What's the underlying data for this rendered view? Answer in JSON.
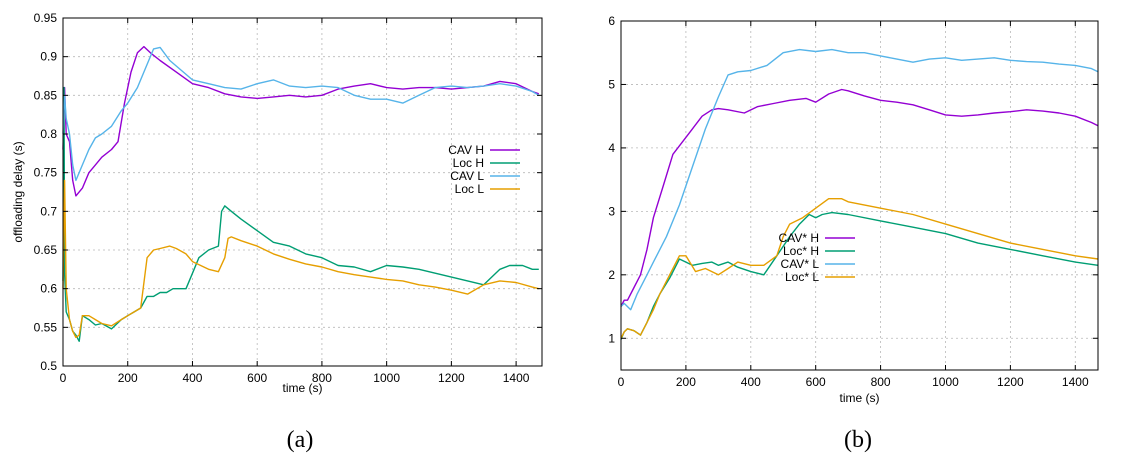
{
  "charts": [
    {
      "caption": "(a)",
      "chart_data": {
        "type": "line",
        "xlabel": "time (s)",
        "ylabel": "offloading delay (s)",
        "xlim": [
          0,
          1480
        ],
        "ylim": [
          0.5,
          0.95
        ],
        "xticks": [
          0,
          200,
          400,
          600,
          800,
          1000,
          1200,
          1400
        ],
        "yticks": [
          0.5,
          0.55,
          0.6,
          0.65,
          0.7,
          0.75,
          0.8,
          0.85,
          0.9,
          0.95
        ],
        "ytick_labels": [
          "0.5",
          "0.55",
          "0.6",
          "0.65",
          "0.7",
          "0.75",
          "0.8",
          "0.85",
          "0.9",
          "0.95"
        ],
        "grid": true,
        "legend_position": "right",
        "series": [
          {
            "name": "CAV H",
            "color": "#9400d3",
            "x": [
              0,
              5,
              10,
              20,
              30,
              40,
              60,
              80,
              100,
              120,
              150,
              170,
              190,
              210,
              230,
              250,
              270,
              300,
              350,
              400,
              450,
              500,
              550,
              600,
              650,
              700,
              750,
              800,
              850,
              900,
              950,
              1000,
              1050,
              1100,
              1150,
              1200,
              1250,
              1300,
              1350,
              1400,
              1450,
              1470
            ],
            "y": [
              0.78,
              0.86,
              0.8,
              0.79,
              0.74,
              0.72,
              0.73,
              0.75,
              0.76,
              0.77,
              0.78,
              0.79,
              0.84,
              0.88,
              0.905,
              0.913,
              0.905,
              0.895,
              0.88,
              0.865,
              0.86,
              0.852,
              0.848,
              0.846,
              0.848,
              0.85,
              0.848,
              0.85,
              0.858,
              0.862,
              0.865,
              0.86,
              0.858,
              0.86,
              0.86,
              0.858,
              0.86,
              0.862,
              0.868,
              0.865,
              0.855,
              0.852
            ]
          },
          {
            "name": "Loc H",
            "color": "#009e73",
            "x": [
              0,
              3,
              5,
              10,
              20,
              30,
              40,
              50,
              60,
              80,
              100,
              120,
              150,
              180,
              200,
              220,
              240,
              260,
              280,
              300,
              320,
              340,
              360,
              380,
              400,
              420,
              450,
              480,
              490,
              500,
              520,
              550,
              600,
              650,
              700,
              750,
              800,
              850,
              900,
              950,
              1000,
              1050,
              1100,
              1150,
              1200,
              1250,
              1300,
              1350,
              1380,
              1420,
              1450,
              1470
            ],
            "y": [
              0.61,
              0.86,
              0.62,
              0.57,
              0.56,
              0.545,
              0.54,
              0.532,
              0.565,
              0.56,
              0.553,
              0.555,
              0.548,
              0.56,
              0.565,
              0.57,
              0.575,
              0.59,
              0.59,
              0.595,
              0.595,
              0.6,
              0.6,
              0.6,
              0.62,
              0.64,
              0.65,
              0.655,
              0.7,
              0.707,
              0.7,
              0.69,
              0.675,
              0.66,
              0.655,
              0.645,
              0.64,
              0.63,
              0.628,
              0.622,
              0.63,
              0.628,
              0.625,
              0.62,
              0.615,
              0.61,
              0.605,
              0.625,
              0.63,
              0.63,
              0.625,
              0.625
            ]
          },
          {
            "name": "CAV L",
            "color": "#56b4e9",
            "x": [
              0,
              5,
              10,
              20,
              30,
              40,
              60,
              80,
              100,
              120,
              150,
              180,
              200,
              230,
              260,
              280,
              300,
              330,
              400,
              450,
              500,
              550,
              600,
              650,
              700,
              750,
              800,
              850,
              900,
              950,
              1000,
              1050,
              1100,
              1150,
              1200,
              1250,
              1300,
              1350,
              1400,
              1450,
              1470
            ],
            "y": [
              0.8,
              0.85,
              0.82,
              0.8,
              0.76,
              0.74,
              0.76,
              0.78,
              0.795,
              0.8,
              0.81,
              0.83,
              0.84,
              0.86,
              0.89,
              0.91,
              0.912,
              0.895,
              0.87,
              0.865,
              0.86,
              0.858,
              0.865,
              0.87,
              0.862,
              0.86,
              0.862,
              0.86,
              0.85,
              0.845,
              0.845,
              0.84,
              0.85,
              0.86,
              0.862,
              0.86,
              0.862,
              0.865,
              0.862,
              0.855,
              0.85
            ]
          },
          {
            "name": "Loc L",
            "color": "#e69f00",
            "x": [
              0,
              5,
              10,
              20,
              30,
              40,
              50,
              60,
              80,
              100,
              120,
              150,
              180,
              200,
              220,
              240,
              260,
              280,
              300,
              330,
              350,
              380,
              400,
              450,
              480,
              500,
              510,
              520,
              550,
              600,
              650,
              700,
              750,
              800,
              850,
              900,
              950,
              1000,
              1050,
              1100,
              1150,
              1200,
              1250,
              1300,
              1350,
              1400,
              1450,
              1470
            ],
            "y": [
              0.6,
              0.74,
              0.6,
              0.56,
              0.545,
              0.537,
              0.54,
              0.565,
              0.565,
              0.56,
              0.555,
              0.552,
              0.56,
              0.565,
              0.57,
              0.575,
              0.64,
              0.65,
              0.652,
              0.655,
              0.652,
              0.645,
              0.635,
              0.625,
              0.622,
              0.64,
              0.665,
              0.667,
              0.662,
              0.655,
              0.645,
              0.638,
              0.632,
              0.628,
              0.622,
              0.618,
              0.615,
              0.612,
              0.61,
              0.605,
              0.602,
              0.598,
              0.593,
              0.605,
              0.61,
              0.608,
              0.602,
              0.6
            ]
          }
        ]
      }
    },
    {
      "caption": "(b)",
      "chart_data": {
        "type": "line",
        "xlabel": "time (s)",
        "ylabel": "",
        "xlim": [
          0,
          1470
        ],
        "ylim": [
          0.5,
          6
        ],
        "xticks": [
          0,
          200,
          400,
          600,
          800,
          1000,
          1200,
          1400
        ],
        "yticks": [
          1,
          2,
          3,
          4,
          5,
          6
        ],
        "ytick_labels": [
          "1",
          "2",
          "3",
          "4",
          "5",
          "6"
        ],
        "grid": true,
        "legend_position": "center",
        "series": [
          {
            "name": "CAV* H",
            "color": "#9400d3",
            "x": [
              0,
              10,
              20,
              40,
              60,
              80,
              100,
              130,
              160,
              190,
              220,
              250,
              280,
              300,
              330,
              380,
              420,
              470,
              520,
              570,
              600,
              640,
              680,
              700,
              750,
              800,
              850,
              900,
              950,
              1000,
              1050,
              1100,
              1150,
              1200,
              1250,
              1300,
              1350,
              1400,
              1450,
              1470
            ],
            "y": [
              1.5,
              1.6,
              1.6,
              1.8,
              2.0,
              2.4,
              2.9,
              3.4,
              3.9,
              4.1,
              4.3,
              4.5,
              4.6,
              4.62,
              4.6,
              4.55,
              4.65,
              4.7,
              4.75,
              4.78,
              4.72,
              4.85,
              4.92,
              4.9,
              4.82,
              4.75,
              4.72,
              4.68,
              4.6,
              4.52,
              4.5,
              4.52,
              4.55,
              4.57,
              4.6,
              4.58,
              4.55,
              4.5,
              4.4,
              4.35
            ]
          },
          {
            "name": "Loc* H",
            "color": "#009e73",
            "x": [
              0,
              10,
              20,
              40,
              60,
              80,
              100,
              120,
              150,
              180,
              200,
              220,
              250,
              280,
              300,
              330,
              360,
              400,
              440,
              480,
              520,
              550,
              580,
              600,
              620,
              650,
              700,
              800,
              900,
              1000,
              1100,
              1200,
              1300,
              1400,
              1470
            ],
            "y": [
              0.98,
              1.1,
              1.15,
              1.12,
              1.05,
              1.25,
              1.5,
              1.7,
              1.95,
              2.25,
              2.2,
              2.15,
              2.18,
              2.2,
              2.15,
              2.2,
              2.12,
              2.05,
              2.0,
              2.3,
              2.6,
              2.8,
              2.95,
              2.9,
              2.95,
              2.98,
              2.95,
              2.85,
              2.75,
              2.65,
              2.5,
              2.4,
              2.3,
              2.2,
              2.15
            ]
          },
          {
            "name": "CAV* L",
            "color": "#56b4e9",
            "x": [
              0,
              10,
              30,
              50,
              80,
              100,
              140,
              180,
              220,
              260,
              300,
              330,
              360,
              400,
              450,
              500,
              550,
              600,
              650,
              700,
              750,
              800,
              850,
              900,
              950,
              1000,
              1050,
              1100,
              1150,
              1200,
              1250,
              1300,
              1350,
              1400,
              1450,
              1470
            ],
            "y": [
              1.5,
              1.55,
              1.45,
              1.7,
              2.0,
              2.2,
              2.6,
              3.1,
              3.7,
              4.3,
              4.8,
              5.15,
              5.2,
              5.22,
              5.3,
              5.5,
              5.55,
              5.52,
              5.55,
              5.5,
              5.5,
              5.45,
              5.4,
              5.35,
              5.4,
              5.42,
              5.38,
              5.4,
              5.42,
              5.38,
              5.36,
              5.35,
              5.32,
              5.3,
              5.25,
              5.2
            ]
          },
          {
            "name": "Loc* L",
            "color": "#e69f00",
            "x": [
              0,
              10,
              20,
              40,
              60,
              80,
              100,
              120,
              150,
              180,
              200,
              230,
              260,
              300,
              330,
              360,
              400,
              440,
              480,
              500,
              520,
              560,
              600,
              640,
              680,
              700,
              800,
              900,
              1000,
              1100,
              1200,
              1300,
              1400,
              1470
            ],
            "y": [
              1.0,
              1.1,
              1.15,
              1.12,
              1.05,
              1.25,
              1.45,
              1.7,
              2.0,
              2.3,
              2.3,
              2.05,
              2.1,
              2.0,
              2.1,
              2.2,
              2.15,
              2.15,
              2.3,
              2.6,
              2.8,
              2.9,
              3.05,
              3.2,
              3.2,
              3.15,
              3.05,
              2.95,
              2.8,
              2.65,
              2.5,
              2.4,
              2.3,
              2.25
            ]
          }
        ]
      }
    }
  ]
}
